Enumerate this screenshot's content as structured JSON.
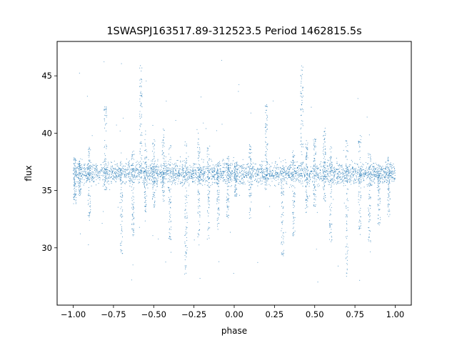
{
  "chart_data": {
    "type": "scatter",
    "title": "1SWASPJ163517.89-312523.5 Period 1462815.5s",
    "xlabel": "phase",
    "ylabel": "flux",
    "xlim": [
      -1.1,
      1.1
    ],
    "ylim": [
      25,
      48
    ],
    "xticks": [
      -1.0,
      -0.75,
      -0.5,
      -0.25,
      0.0,
      0.25,
      0.5,
      0.75,
      1.0
    ],
    "xtick_labels": [
      "−1.00",
      "−0.75",
      "−0.50",
      "−0.25",
      "0.00",
      "0.25",
      "0.50",
      "0.75",
      "1.00"
    ],
    "yticks": [
      30,
      35,
      40,
      45
    ],
    "ytick_labels": [
      "30",
      "35",
      "40",
      "45"
    ],
    "grid": false,
    "legend": "none",
    "point_color": "#1f77b4",
    "baseline_flux": 36.5,
    "baseline_scatter": 0.9,
    "flux_excursions": [
      {
        "phase": -0.99,
        "low": 33.8,
        "high": 38.0
      },
      {
        "phase": -0.96,
        "low": 34.5,
        "high": 37.8
      },
      {
        "phase": -0.9,
        "low": 32.2,
        "high": 39.0
      },
      {
        "phase": -0.8,
        "low": 35.0,
        "high": 42.5
      },
      {
        "phase": -0.7,
        "low": 29.3,
        "high": 37.0
      },
      {
        "phase": -0.63,
        "low": 31.0,
        "high": 38.5
      },
      {
        "phase": -0.58,
        "low": 36.0,
        "high": 46.0
      },
      {
        "phase": -0.55,
        "low": 33.0,
        "high": 39.5
      },
      {
        "phase": -0.5,
        "low": 33.5,
        "high": 39.5
      },
      {
        "phase": -0.44,
        "low": 34.0,
        "high": 40.5
      },
      {
        "phase": -0.4,
        "low": 30.5,
        "high": 39.0
      },
      {
        "phase": -0.3,
        "low": 27.5,
        "high": 39.5
      },
      {
        "phase": -0.22,
        "low": 31.0,
        "high": 40.0
      },
      {
        "phase": -0.16,
        "low": 30.5,
        "high": 39.0
      },
      {
        "phase": -0.1,
        "low": 31.5,
        "high": 37.5
      },
      {
        "phase": -0.04,
        "low": 32.5,
        "high": 38.0
      },
      {
        "phase": 0.01,
        "low": 34.5,
        "high": 37.5
      },
      {
        "phase": 0.1,
        "low": 32.2,
        "high": 39.0
      },
      {
        "phase": 0.2,
        "low": 35.0,
        "high": 42.5
      },
      {
        "phase": 0.3,
        "low": 29.3,
        "high": 37.0
      },
      {
        "phase": 0.37,
        "low": 31.0,
        "high": 38.5
      },
      {
        "phase": 0.42,
        "low": 36.0,
        "high": 46.0
      },
      {
        "phase": 0.45,
        "low": 33.0,
        "high": 39.5
      },
      {
        "phase": 0.5,
        "low": 33.5,
        "high": 39.5
      },
      {
        "phase": 0.56,
        "low": 34.0,
        "high": 40.5
      },
      {
        "phase": 0.6,
        "low": 30.5,
        "high": 39.0
      },
      {
        "phase": 0.7,
        "low": 27.5,
        "high": 39.5
      },
      {
        "phase": 0.78,
        "low": 31.0,
        "high": 40.0
      },
      {
        "phase": 0.84,
        "low": 30.5,
        "high": 39.0
      },
      {
        "phase": 0.9,
        "low": 31.5,
        "high": 37.5
      },
      {
        "phase": 0.96,
        "low": 32.5,
        "high": 38.0
      }
    ]
  }
}
